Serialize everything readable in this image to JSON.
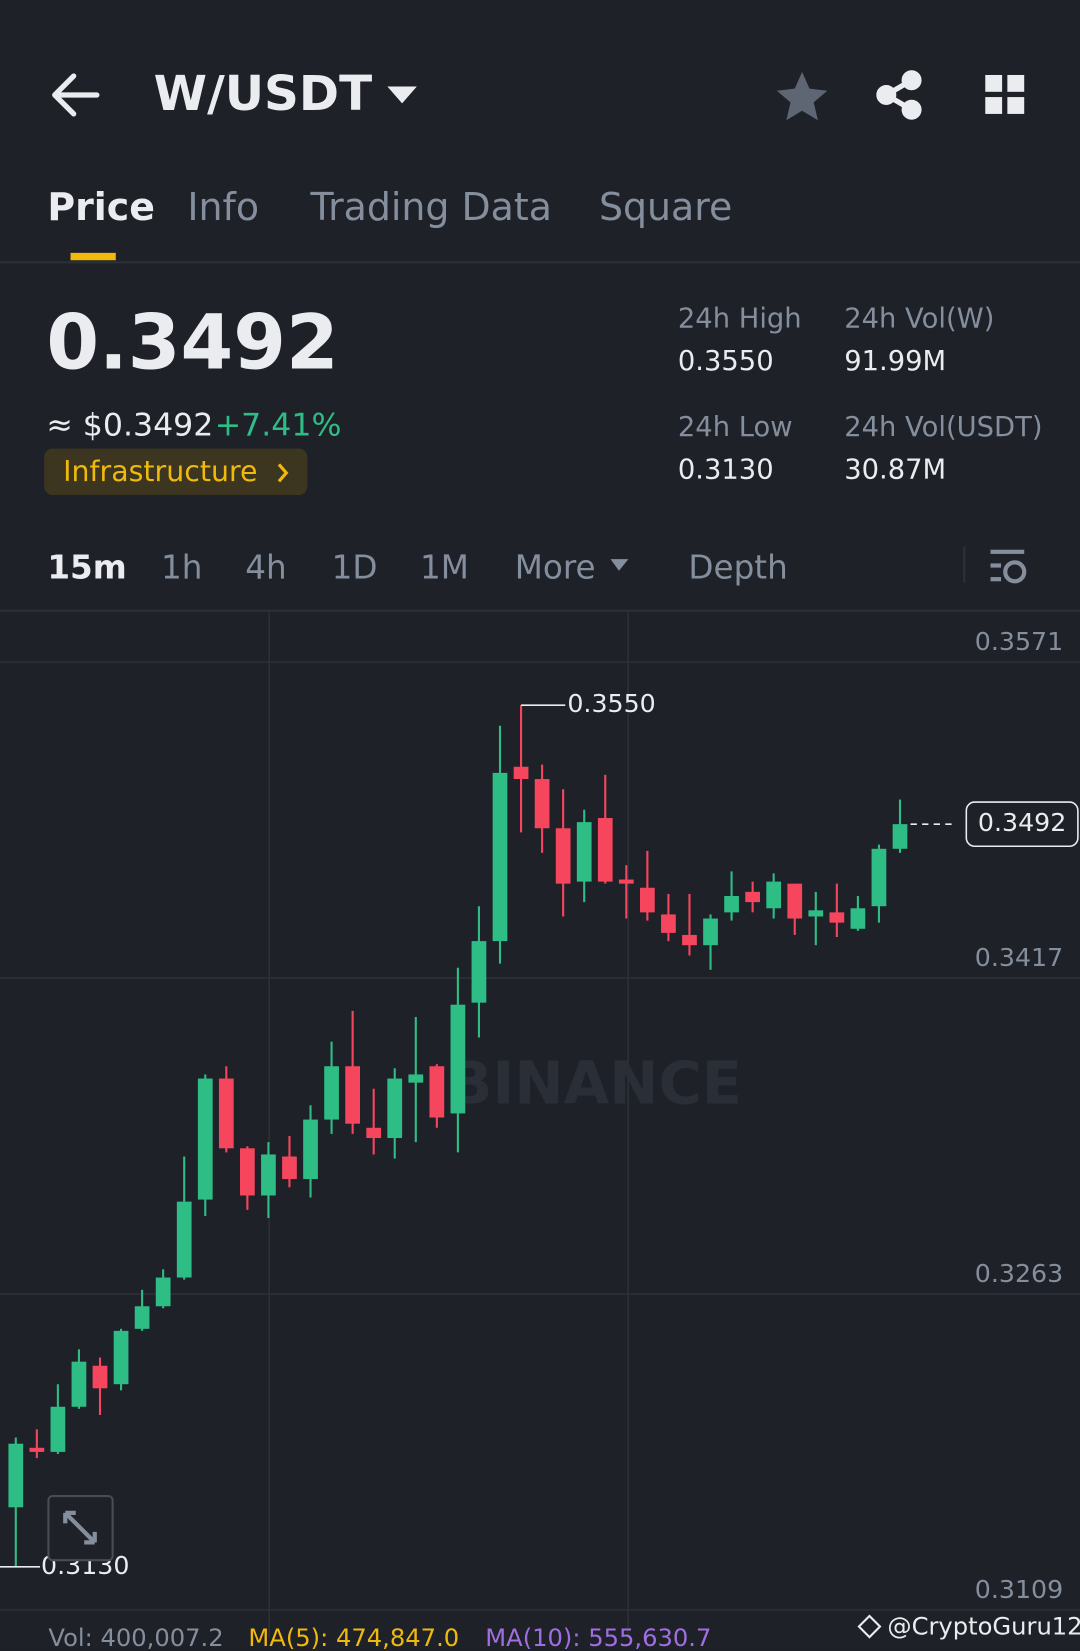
{
  "header": {
    "title": "W/USDT"
  },
  "tabs": [
    "Price",
    "Info",
    "Trading Data",
    "Square"
  ],
  "price": {
    "last": "0.3492",
    "usd": "≈ $0.3492",
    "change": "+7.41%",
    "tag": "Infrastructure"
  },
  "stats": [
    {
      "label": "24h High",
      "value": "0.3550"
    },
    {
      "label": "24h Vol(W)",
      "value": "91.99M"
    },
    {
      "label": "24h Low",
      "value": "0.3130"
    },
    {
      "label": "24h Vol(USDT)",
      "value": "30.87M"
    }
  ],
  "intervals": [
    "15m",
    "1h",
    "4h",
    "1D",
    "1M",
    "More",
    "Depth"
  ],
  "chart_data": {
    "type": "candlestick",
    "up_color": "#2ebd85",
    "down_color": "#f6465d",
    "ylim": [
      0.3106,
      0.3595
    ],
    "yticks": [
      0.3571,
      0.3417,
      0.3263,
      0.3109
    ],
    "grid": true,
    "open": [
      0.3159,
      0.3188,
      0.3186,
      0.3208,
      0.3228,
      0.3219,
      0.3246,
      0.3257,
      0.3271,
      0.3309,
      0.3368,
      0.3334,
      0.3311,
      0.333,
      0.3319,
      0.3348,
      0.3374,
      0.3344,
      0.3339,
      0.3366,
      0.3374,
      0.3351,
      0.3405,
      0.3435,
      0.352,
      0.3514,
      0.349,
      0.3464,
      0.3495,
      0.3465,
      0.3461,
      0.3448,
      0.3438,
      0.3433,
      0.3449,
      0.3459,
      0.3451,
      0.3463,
      0.3447,
      0.3449,
      0.3441,
      0.3452,
      0.348
    ],
    "high": [
      0.3193,
      0.3197,
      0.3219,
      0.3236,
      0.3232,
      0.3246,
      0.3265,
      0.3275,
      0.333,
      0.337,
      0.3374,
      0.3335,
      0.3337,
      0.334,
      0.3355,
      0.3386,
      0.3401,
      0.3363,
      0.3373,
      0.3398,
      0.3375,
      0.3422,
      0.3452,
      0.354,
      0.355,
      0.3521,
      0.3509,
      0.3499,
      0.3516,
      0.3472,
      0.3479,
      0.3458,
      0.3458,
      0.3448,
      0.3469,
      0.3464,
      0.3468,
      0.3463,
      0.3459,
      0.3463,
      0.3457,
      0.3482,
      0.3504
    ],
    "low": [
      0.313,
      0.3183,
      0.3185,
      0.3207,
      0.3204,
      0.3216,
      0.3245,
      0.3256,
      0.327,
      0.3301,
      0.3332,
      0.3304,
      0.33,
      0.3315,
      0.331,
      0.3341,
      0.3341,
      0.3331,
      0.3329,
      0.3337,
      0.3344,
      0.3332,
      0.3388,
      0.3424,
      0.3488,
      0.3478,
      0.3447,
      0.3454,
      0.3463,
      0.3446,
      0.3445,
      0.3435,
      0.3428,
      0.3421,
      0.3445,
      0.3449,
      0.3446,
      0.3438,
      0.3433,
      0.3437,
      0.344,
      0.3444,
      0.3478
    ],
    "close": [
      0.319,
      0.3186,
      0.3208,
      0.323,
      0.3217,
      0.3245,
      0.3257,
      0.3271,
      0.3308,
      0.3368,
      0.3334,
      0.3311,
      0.3331,
      0.3319,
      0.3348,
      0.3374,
      0.3346,
      0.3339,
      0.3368,
      0.337,
      0.3349,
      0.3404,
      0.3435,
      0.3517,
      0.3514,
      0.349,
      0.3463,
      0.3493,
      0.3464,
      0.3463,
      0.3449,
      0.3439,
      0.3433,
      0.3446,
      0.3457,
      0.3454,
      0.3464,
      0.3446,
      0.345,
      0.3444,
      0.3451,
      0.348,
      0.3492
    ],
    "max_label": "0.3550",
    "min_label": "0.3130",
    "last_label": "0.3492",
    "watermark": "BINANCE"
  },
  "volume": {
    "vol": "Vol: 400,007.2",
    "ma5": "MA(5): 474,847.0",
    "ma10": "MA(10): 555,630.7"
  },
  "credit": "@CryptoGuru12"
}
